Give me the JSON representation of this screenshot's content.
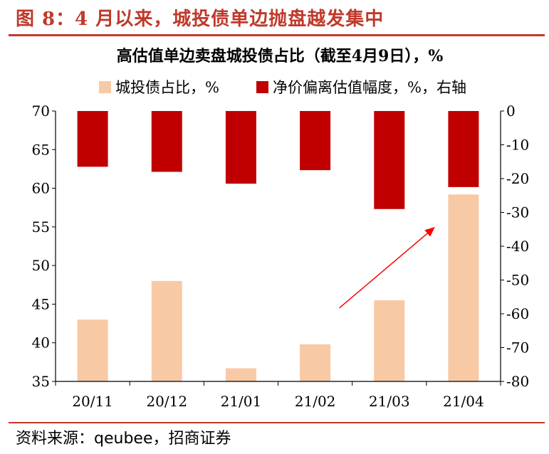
{
  "figure": {
    "title": "图 8：4 月以来，城投债单边抛盘越发集中",
    "source": "资料来源：qeubee，招商证券"
  },
  "chart_data": {
    "type": "bar",
    "title": "高估值单边卖盘城投债占比（截至4月9日），%",
    "categories": [
      "20/11",
      "20/12",
      "21/01",
      "21/02",
      "21/03",
      "21/04"
    ],
    "series": [
      {
        "name": "城投债占比，%",
        "axis": "left",
        "color": "#f8c9a5",
        "values": [
          43.0,
          48.0,
          36.7,
          39.8,
          45.5,
          59.2
        ]
      },
      {
        "name": "净价偏离估值幅度，%，右轴",
        "axis": "right",
        "color": "#c00000",
        "values": [
          -16.5,
          -18.0,
          -21.5,
          -17.5,
          -29.0,
          -22.5
        ]
      }
    ],
    "y_left": {
      "range": [
        35,
        70
      ],
      "ticks": [
        "35",
        "40",
        "45",
        "50",
        "55",
        "60",
        "65",
        "70"
      ]
    },
    "y_right": {
      "range": [
        -80,
        0
      ],
      "ticks": [
        "0",
        "-10",
        "-20",
        "-30",
        "-40",
        "-50",
        "-60",
        "-70",
        "-80"
      ]
    },
    "legend_placement": "top",
    "grid": false,
    "annotation": {
      "type": "arrow",
      "color": "#ff0000",
      "from": [
        "21/02",
        44.5
      ],
      "to": [
        "21/04",
        55.0
      ]
    }
  }
}
